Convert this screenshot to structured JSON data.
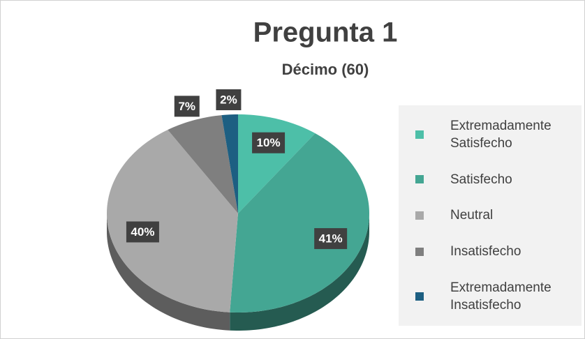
{
  "chart_data": {
    "type": "pie",
    "title": "Pregunta 1",
    "subtitle": "Décimo (60)",
    "categories": [
      "Extremadamente Satisfecho",
      "Satisfecho",
      "Neutral",
      "Insatisfecho",
      "Extremadamente Insatisfecho"
    ],
    "values": [
      10,
      41,
      40,
      7,
      2
    ],
    "value_labels": [
      "10%",
      "41%",
      "40%",
      "7%",
      "2%"
    ],
    "colors": [
      "#4dbfa8",
      "#44a693",
      "#a9a9a9",
      "#7f7f7f",
      "#1d5f82"
    ],
    "legend": "right"
  }
}
